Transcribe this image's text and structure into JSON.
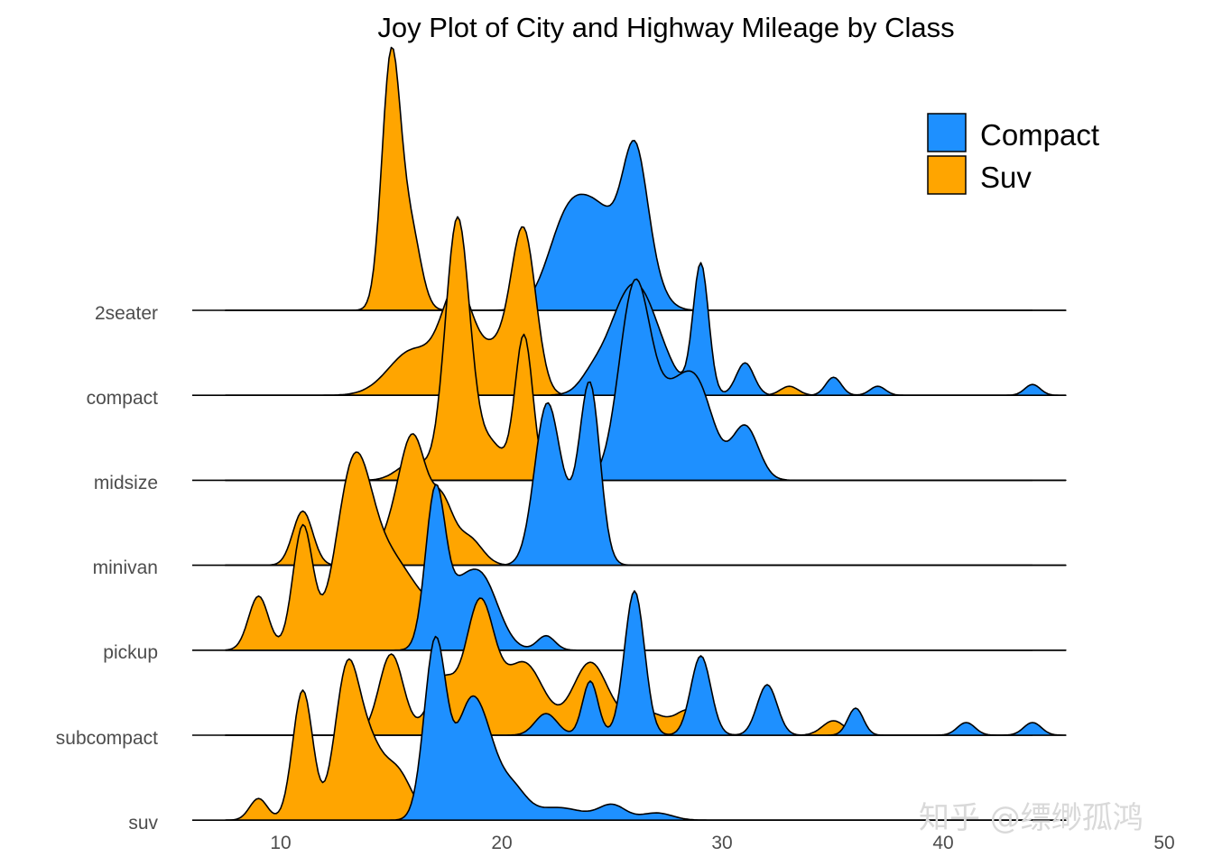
{
  "watermark": "知乎 @缥缈孤鸿",
  "colors": {
    "compact": "#1E90FF",
    "suv": "#FFA500",
    "stroke": "#000000"
  },
  "chart_data": {
    "type": "ridgeline",
    "title": "Joy Plot of City and Highway Mileage by Class",
    "xlabel": "",
    "ylabel": "",
    "xlim": [
      6,
      44
    ],
    "x_ticks": [
      10,
      20,
      30,
      40,
      50
    ],
    "legend": {
      "position": "top-right",
      "entries": [
        "Compact",
        "Suv"
      ]
    },
    "categories": [
      "2seater",
      "compact",
      "midsize",
      "minivan",
      "pickup",
      "subcompact",
      "suv"
    ],
    "x_range": [
      7.5,
      45.5
    ],
    "baseline_range": [
      6,
      44
    ],
    "series": [
      {
        "name": "Compact",
        "key": "compact",
        "ridges": [
          {
            "class": "2seater",
            "components": [
              [
                23,
                0.9,
                0.5
              ],
              [
                24.6,
                0.9,
                0.45
              ],
              [
                26,
                0.55,
                0.65
              ],
              [
                26.5,
                0.7,
                0.2
              ]
            ]
          },
          {
            "class": "compact",
            "components": [
              [
                24,
                0.5,
                0.05
              ],
              [
                26,
                1.1,
                0.62
              ],
              [
                29,
                0.35,
                0.72
              ],
              [
                31,
                0.4,
                0.18
              ],
              [
                35,
                0.35,
                0.1
              ],
              [
                37,
                0.35,
                0.05
              ],
              [
                44,
                0.35,
                0.06
              ]
            ]
          },
          {
            "class": "midsize",
            "components": [
              [
                26,
                0.7,
                1.05
              ],
              [
                27.8,
                0.9,
                0.45
              ],
              [
                29,
                0.7,
                0.35
              ],
              [
                31,
                0.6,
                0.3
              ]
            ]
          },
          {
            "class": "minivan",
            "components": [
              [
                22,
                0.55,
                0.78
              ],
              [
                24,
                0.45,
                0.9
              ],
              [
                23,
                0.8,
                0.25
              ]
            ]
          },
          {
            "class": "pickup",
            "components": [
              [
                17,
                0.45,
                0.88
              ],
              [
                19,
                0.8,
                0.42
              ],
              [
                18,
                0.5,
                0.15
              ],
              [
                22,
                0.4,
                0.08
              ]
            ]
          },
          {
            "class": "subcompact",
            "components": [
              [
                22,
                0.5,
                0.12
              ],
              [
                24,
                0.35,
                0.3
              ],
              [
                26,
                0.45,
                0.8
              ],
              [
                29,
                0.45,
                0.44
              ],
              [
                32,
                0.45,
                0.28
              ],
              [
                36,
                0.35,
                0.15
              ],
              [
                41,
                0.4,
                0.07
              ],
              [
                44,
                0.4,
                0.07
              ]
            ]
          },
          {
            "class": "suv",
            "components": [
              [
                17,
                0.5,
                1.0
              ],
              [
                19,
                0.7,
                0.55
              ],
              [
                18.3,
                0.5,
                0.25
              ],
              [
                20.5,
                0.6,
                0.15
              ],
              [
                22.5,
                1.2,
                0.07
              ],
              [
                25,
                0.6,
                0.08
              ],
              [
                27,
                0.7,
                0.04
              ]
            ]
          }
        ]
      },
      {
        "name": "Suv",
        "key": "suv",
        "ridges": [
          {
            "class": "2seater",
            "components": [
              [
                15,
                0.42,
                1.4
              ],
              [
                15.9,
                0.45,
                0.42
              ]
            ]
          },
          {
            "class": "compact",
            "components": [
              [
                16,
                1.1,
                0.25
              ],
              [
                18,
                0.7,
                0.55
              ],
              [
                21,
                0.55,
                0.85
              ],
              [
                19.8,
                0.8,
                0.25
              ],
              [
                24,
                0.35,
                0.1
              ],
              [
                28,
                0.5,
                0.05
              ],
              [
                33,
                0.4,
                0.05
              ]
            ]
          },
          {
            "class": "midsize",
            "components": [
              [
                18,
                0.55,
                1.45
              ],
              [
                21,
                0.4,
                0.8
              ],
              [
                16,
                0.7,
                0.1
              ],
              [
                19.5,
                0.6,
                0.2
              ]
            ]
          },
          {
            "class": "minivan",
            "components": [
              [
                16,
                0.6,
                0.68
              ],
              [
                17.3,
                0.5,
                0.32
              ],
              [
                11,
                0.45,
                0.3
              ],
              [
                15,
                0.6,
                0.15
              ],
              [
                18.5,
                0.6,
                0.15
              ]
            ]
          },
          {
            "class": "pickup",
            "components": [
              [
                9,
                0.45,
                0.3
              ],
              [
                11,
                0.45,
                0.68
              ],
              [
                13.3,
                0.8,
                0.98
              ],
              [
                15,
                1.0,
                0.45
              ],
              [
                17,
                1.0,
                0.18
              ]
            ]
          },
          {
            "class": "subcompact",
            "components": [
              [
                15,
                0.55,
                0.45
              ],
              [
                17.3,
                0.6,
                0.3
              ],
              [
                19,
                0.65,
                0.72
              ],
              [
                21,
                0.9,
                0.4
              ],
              [
                24,
                0.8,
                0.4
              ],
              [
                26.5,
                0.9,
                0.13
              ],
              [
                28.5,
                0.6,
                0.13
              ],
              [
                35,
                0.5,
                0.08
              ]
            ]
          },
          {
            "class": "suv",
            "components": [
              [
                9,
                0.4,
                0.12
              ],
              [
                11,
                0.45,
                0.72
              ],
              [
                13,
                0.55,
                0.82
              ],
              [
                14,
                0.55,
                0.32
              ],
              [
                15.2,
                0.7,
                0.28
              ],
              [
                18,
                0.5,
                0.1
              ],
              [
                20,
                0.4,
                0.07
              ]
            ]
          }
        ]
      }
    ]
  }
}
